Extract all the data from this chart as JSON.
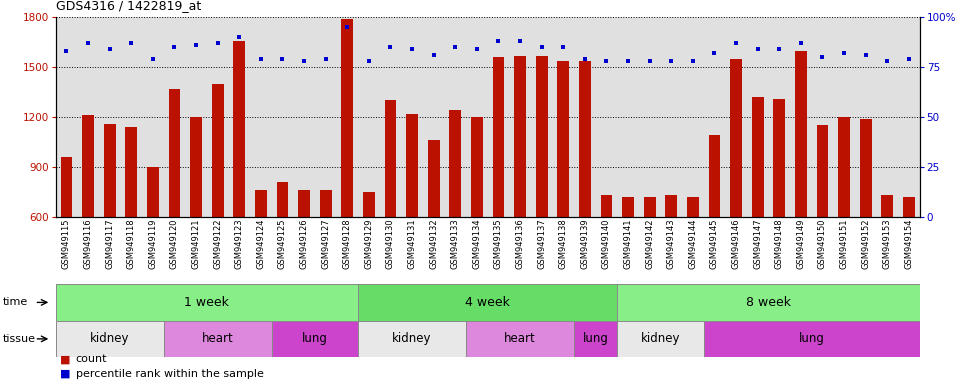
{
  "title": "GDS4316 / 1422819_at",
  "samples": [
    "GSM949115",
    "GSM949116",
    "GSM949117",
    "GSM949118",
    "GSM949119",
    "GSM949120",
    "GSM949121",
    "GSM949122",
    "GSM949123",
    "GSM949124",
    "GSM949125",
    "GSM949126",
    "GSM949127",
    "GSM949128",
    "GSM949129",
    "GSM949130",
    "GSM949131",
    "GSM949132",
    "GSM949133",
    "GSM949134",
    "GSM949135",
    "GSM949136",
    "GSM949137",
    "GSM949138",
    "GSM949139",
    "GSM949140",
    "GSM949141",
    "GSM949142",
    "GSM949143",
    "GSM949144",
    "GSM949145",
    "GSM949146",
    "GSM949147",
    "GSM949148",
    "GSM949149",
    "GSM949150",
    "GSM949151",
    "GSM949152",
    "GSM949153",
    "GSM949154"
  ],
  "counts": [
    960,
    1210,
    1160,
    1140,
    900,
    1370,
    1200,
    1400,
    1660,
    760,
    810,
    760,
    760,
    1790,
    750,
    1300,
    1220,
    1060,
    1240,
    1200,
    1560,
    1570,
    1570,
    1540,
    1540,
    730,
    720,
    720,
    730,
    720,
    1090,
    1550,
    1320,
    1310,
    1600,
    1150,
    1200,
    1190,
    730,
    720
  ],
  "percentile": [
    83,
    87,
    84,
    87,
    79,
    85,
    86,
    87,
    90,
    79,
    79,
    78,
    79,
    95,
    78,
    85,
    84,
    81,
    85,
    84,
    88,
    88,
    85,
    85,
    79,
    78,
    78,
    78,
    78,
    78,
    82,
    87,
    84,
    84,
    87,
    80,
    82,
    81,
    78,
    79
  ],
  "ylim_left": [
    600,
    1800
  ],
  "ylim_right": [
    0,
    100
  ],
  "yticks_left": [
    600,
    900,
    1200,
    1500,
    1800
  ],
  "yticks_right": [
    0,
    25,
    50,
    75,
    100
  ],
  "bar_color": "#bb1100",
  "dot_color": "#0000cc",
  "bg_color": "#e0e0e0",
  "time_groups": [
    {
      "label": "1 week",
      "start": 0,
      "end": 14,
      "color": "#88ee88"
    },
    {
      "label": "4 week",
      "start": 14,
      "end": 26,
      "color": "#66dd66"
    },
    {
      "label": "8 week",
      "start": 26,
      "end": 40,
      "color": "#88ee88"
    }
  ],
  "tissue_groups": [
    {
      "label": "kidney",
      "start": 0,
      "end": 5,
      "color": "#e8e8e8"
    },
    {
      "label": "heart",
      "start": 5,
      "end": 10,
      "color": "#dd88dd"
    },
    {
      "label": "lung",
      "start": 10,
      "end": 14,
      "color": "#cc44cc"
    },
    {
      "label": "kidney",
      "start": 14,
      "end": 19,
      "color": "#e8e8e8"
    },
    {
      "label": "heart",
      "start": 19,
      "end": 24,
      "color": "#dd88dd"
    },
    {
      "label": "lung",
      "start": 24,
      "end": 26,
      "color": "#cc44cc"
    },
    {
      "label": "kidney",
      "start": 26,
      "end": 30,
      "color": "#e8e8e8"
    },
    {
      "label": "lung",
      "start": 30,
      "end": 40,
      "color": "#cc44cc"
    }
  ],
  "legend_items": [
    {
      "label": "count",
      "color": "#bb1100"
    },
    {
      "label": "percentile rank within the sample",
      "color": "#0000cc"
    }
  ]
}
